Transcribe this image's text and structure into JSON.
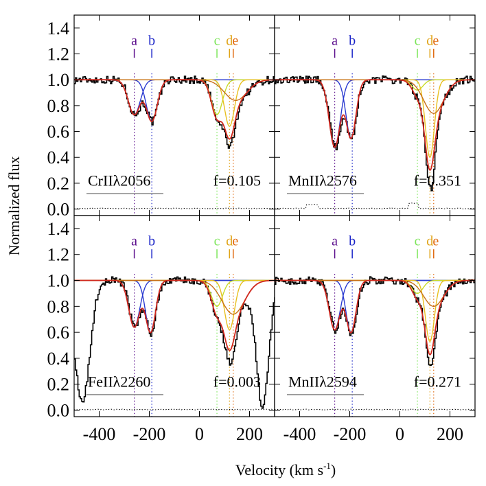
{
  "figure": {
    "ylabel": "Normalized flux",
    "xlabel": "Velocity (km s",
    "xlabel_sup": "-1",
    "xlabel_close": ")"
  },
  "colors": {
    "a": "#5b0e8c",
    "b": "#1a24c8",
    "c": "#7de65a",
    "d": "#e0a418",
    "e": "#e06a10",
    "fit_total": "#d0281e",
    "comp_b": "#2a3ad0",
    "comp_c": "#c8dc2a",
    "comp_d": "#e8c020",
    "comp_e": "#c87018",
    "data": "#000000"
  },
  "chart_data": {
    "type": "line",
    "panel_layout": "2x2",
    "xlim": [
      -500,
      300
    ],
    "ylim": [
      -0.05,
      1.5
    ],
    "x_ticks": [
      -400,
      -200,
      0,
      200
    ],
    "x_tick_labels": [
      "-400",
      "-200",
      "0",
      "200"
    ],
    "y_ticks": [
      0.0,
      0.2,
      0.4,
      0.6,
      0.8,
      1.0,
      1.2,
      1.4
    ],
    "y_tick_labels": [
      "0.0",
      "0.2",
      "0.4",
      "0.6",
      "0.8",
      "1.0",
      "1.2",
      "1.4"
    ],
    "component_labels": [
      "a",
      "b",
      "c",
      "d",
      "e"
    ],
    "component_velocities": [
      -260,
      -190,
      70,
      120,
      135
    ],
    "panels": [
      {
        "ion": "CrIIλ2056",
        "f": "f=0.105",
        "components": [
          {
            "name": "a",
            "velocity": -260,
            "depth": 0.27,
            "width": 24
          },
          {
            "name": "b",
            "velocity": -190,
            "depth": 0.32,
            "width": 22
          },
          {
            "name": "c",
            "velocity": 70,
            "depth": 0.27,
            "width": 22
          },
          {
            "name": "d",
            "velocity": 120,
            "depth": 0.36,
            "width": 20
          },
          {
            "name": "e",
            "velocity": 145,
            "depth": 0.16,
            "width": 45
          }
        ],
        "extra_absorption": []
      },
      {
        "ion": "MnIIλ2576",
        "f": "f=0.351",
        "components": [
          {
            "name": "a",
            "velocity": -260,
            "depth": 0.52,
            "width": 22
          },
          {
            "name": "b",
            "velocity": -195,
            "depth": 0.45,
            "width": 20
          },
          {
            "name": "c",
            "velocity": 70,
            "depth": 0.08,
            "width": 22
          },
          {
            "name": "d",
            "velocity": 120,
            "depth": 0.6,
            "width": 18
          },
          {
            "name": "e",
            "velocity": 135,
            "depth": 0.26,
            "width": 40
          }
        ],
        "extra_absorption": []
      },
      {
        "ion": "FeIIλ2260",
        "f": "f=0.003",
        "components": [
          {
            "name": "a",
            "velocity": -260,
            "depth": 0.36,
            "width": 22
          },
          {
            "name": "b",
            "velocity": -195,
            "depth": 0.4,
            "width": 20
          },
          {
            "name": "c",
            "velocity": 70,
            "depth": 0.2,
            "width": 22
          },
          {
            "name": "d",
            "velocity": 120,
            "depth": 0.38,
            "width": 20
          },
          {
            "name": "e",
            "velocity": 135,
            "depth": 0.26,
            "width": 45
          }
        ],
        "extra_absorption": [
          {
            "velocity": -470,
            "depth": 0.95,
            "width": 30
          },
          {
            "velocity": 250,
            "depth": 0.95,
            "width": 25
          }
        ]
      },
      {
        "ion": "MnIIλ2594",
        "f": "f=0.271",
        "components": [
          {
            "name": "a",
            "velocity": -260,
            "depth": 0.38,
            "width": 22
          },
          {
            "name": "b",
            "velocity": -195,
            "depth": 0.4,
            "width": 20
          },
          {
            "name": "c",
            "velocity": 70,
            "depth": 0.1,
            "width": 22
          },
          {
            "name": "d",
            "velocity": 120,
            "depth": 0.47,
            "width": 18
          },
          {
            "name": "e",
            "velocity": 135,
            "depth": 0.2,
            "width": 40
          }
        ],
        "extra_absorption": []
      }
    ]
  }
}
